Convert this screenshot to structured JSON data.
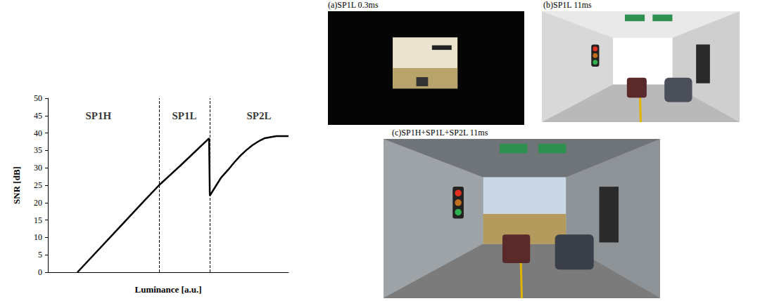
{
  "chart_data": {
    "type": "line",
    "x_label": "Luminance [a.u.]",
    "y_label": "SNR [dB]",
    "x": [
      12.3,
      20,
      30,
      40,
      46.2,
      55,
      67.0,
      67.3,
      70,
      72,
      75,
      77.5,
      80,
      82.5,
      85,
      87.5,
      90,
      95,
      100
    ],
    "values": [
      0,
      5.7,
      13.1,
      20.5,
      25,
      30.6,
      38.5,
      22,
      25,
      27.2,
      29.5,
      31.6,
      33.5,
      35.1,
      36.5,
      37.6,
      38.5,
      39.1,
      39.1
    ],
    "color": "#000000",
    "xlim": [
      0,
      100
    ],
    "ylim": [
      0,
      50
    ],
    "yticks": [
      0,
      5,
      10,
      15,
      20,
      25,
      30,
      35,
      40,
      45,
      50
    ],
    "grid": false,
    "tick_labels": "y",
    "dividers": [
      46.2,
      67.3
    ],
    "annotations": [
      {
        "text": "SP1H",
        "x": 21,
        "y": 45
      },
      {
        "text": "SP1L",
        "x": 56.7,
        "y": 45
      },
      {
        "text": "SP2L",
        "x": 87.7,
        "y": 45
      }
    ]
  },
  "images": [
    {
      "caption": "(a)SP1L 0.3ms"
    },
    {
      "caption": "(b)SP1L 11ms"
    },
    {
      "caption": "(c)SP1H+SP1L+SP2L 11ms"
    }
  ]
}
